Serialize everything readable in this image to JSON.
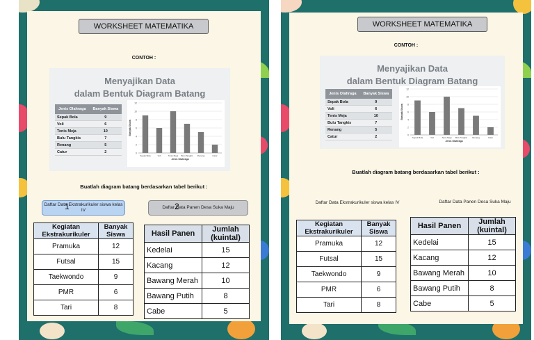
{
  "pages": [
    {
      "title": "WORKSHEET MATEMATIKA",
      "contoh_label": "CONTOH :",
      "example": {
        "title_line1": "Menyajikan Data",
        "title_line2": "dalam Bentuk Diagram Batang",
        "table_headers": [
          "Jenis Olahraga",
          "Banyak Siswa"
        ],
        "table_rows": [
          [
            "Sepak Bola",
            "9"
          ],
          [
            "Voli",
            "6"
          ],
          [
            "Tenis Meja",
            "10"
          ],
          [
            "Bulu Tangkis",
            "7"
          ],
          [
            "Renang",
            "5"
          ],
          [
            "Catur",
            "2"
          ]
        ]
      },
      "instruction": "Buatlah diagram batang berdasarkan tabel berikut :",
      "label1": "Daftar Data Ekstrakurikuler siswa kelas IV",
      "label2": "Daftar Data Panen Desa Suka Maju",
      "num1": "1",
      "num2": "2",
      "table1": {
        "headers": [
          "Kegiatan Ekstrakurikuler",
          "Banyak Siswa"
        ],
        "rows": [
          [
            "Pramuka",
            "12"
          ],
          [
            "Futsal",
            "15"
          ],
          [
            "Taekwondo",
            "9"
          ],
          [
            "PMR",
            "6"
          ],
          [
            "Tari",
            "8"
          ]
        ]
      },
      "table2": {
        "headers": [
          "Hasil Panen",
          "Jumlah (kuintal)"
        ],
        "rows": [
          [
            "Kedelai",
            "15"
          ],
          [
            "Kacang",
            "12"
          ],
          [
            "Bawang Merah",
            "10"
          ],
          [
            "Bawang Putih",
            "8"
          ],
          [
            "Cabe",
            "5"
          ]
        ]
      }
    },
    {
      "title": "WORKSHEET MATEMATIKA",
      "contoh_label": "CONTOH :",
      "example": {
        "title_line1": "Menyajikan Data",
        "title_line2": "dalam Bentuk Diagram Batang",
        "table_headers": [
          "Jenis Olahraga",
          "Banyak Siswa"
        ],
        "table_rows": [
          [
            "Sepak Bola",
            "9"
          ],
          [
            "Voli",
            "6"
          ],
          [
            "Tenis Meja",
            "10"
          ],
          [
            "Bulu Tangkis",
            "7"
          ],
          [
            "Renang",
            "5"
          ],
          [
            "Catur",
            "2"
          ]
        ]
      },
      "instruction": "Buatlah diagram batang berdasarkan tabel berikut :",
      "label1": "Daftar Data Ekstrakurikuler siswa kelas IV",
      "label2": "Daftar Data Panen Desa Suka Maju",
      "table1": {
        "headers": [
          "Kegiatan Ekstrakurikuler",
          "Banyak Siswa"
        ],
        "rows": [
          [
            "Pramuka",
            "12"
          ],
          [
            "Futsal",
            "15"
          ],
          [
            "Taekwondo",
            "9"
          ],
          [
            "PMR",
            "6"
          ],
          [
            "Tari",
            "8"
          ]
        ]
      },
      "table2": {
        "headers": [
          "Hasil Panen",
          "Jumlah (kuintal)"
        ],
        "rows": [
          [
            "Kedelai",
            "15"
          ],
          [
            "Kacang",
            "12"
          ],
          [
            "Bawang Merah",
            "10"
          ],
          [
            "Bawang Putih",
            "8"
          ],
          [
            "Cabe",
            "5"
          ]
        ]
      }
    }
  ],
  "chart_data": [
    {
      "type": "bar",
      "categories": [
        "Sepak Bola",
        "Voli",
        "Tenis Meja",
        "Bulu Tangkis",
        "Renang",
        "Catur"
      ],
      "values": [
        9,
        6,
        10,
        7,
        5,
        2
      ],
      "title": "",
      "xlabel": "Jenis Olahraga",
      "ylabel": "Banyak Siswa",
      "ylim": [
        0,
        12
      ],
      "yticks": [
        0,
        2,
        4,
        6,
        8,
        10,
        12
      ],
      "grid": true,
      "bar_color": "#7a7a7a"
    }
  ],
  "colors": {
    "border": "#1f6f6b",
    "sheet": "#fbf6e6",
    "blue_label": "#b9d3f2",
    "gray_label": "#c9cacd"
  }
}
